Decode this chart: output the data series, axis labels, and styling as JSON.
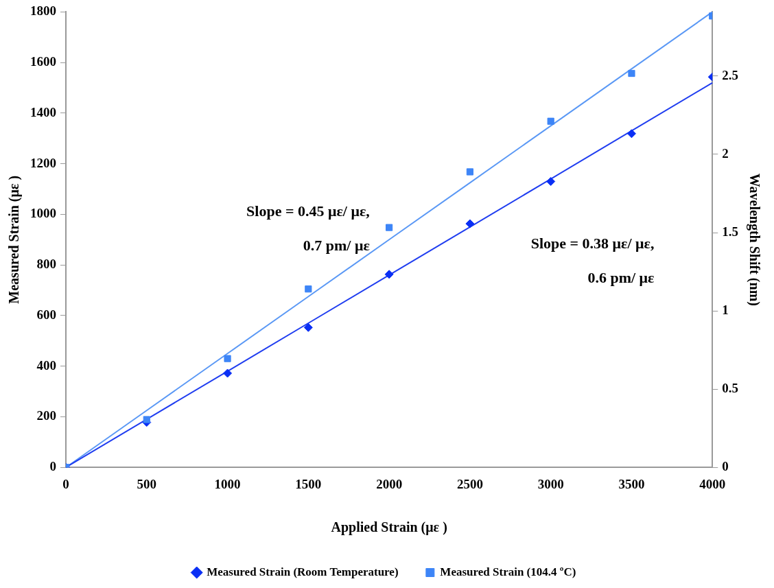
{
  "chart_data": {
    "type": "scatter",
    "xlabel": "Applied Strain (με )",
    "ylabel": "Measured Strain (με )",
    "y2label": "Wavelength Shift (nm)",
    "x": [
      0,
      500,
      1000,
      1500,
      2000,
      2500,
      3000,
      3500,
      4000
    ],
    "series": [
      {
        "name": "Measured Strain (Room Temperature)",
        "color": "#0a2ff5",
        "marker": "diamond",
        "values": [
          0,
          178,
          372,
          553,
          763,
          963,
          1130,
          1319,
          1543
        ]
      },
      {
        "name": "Measured Strain (104.4 ºC)",
        "color": "#3d85f7",
        "marker": "square",
        "values": [
          0,
          189,
          430,
          705,
          948,
          1168,
          1368,
          1557,
          1784
        ]
      },
      {
        "type": "line",
        "color": "#1f3df0",
        "marker": "none",
        "values": [
          0,
          190,
          380,
          570,
          760,
          950,
          1140,
          1330,
          1520
        ]
      },
      {
        "type": "line",
        "color": "#5a98f5",
        "marker": "none",
        "values": [
          0,
          225,
          450,
          675,
          900,
          1125,
          1350,
          1575,
          1800
        ]
      }
    ],
    "xlim": [
      0,
      4000
    ],
    "xticks": [
      0,
      500,
      1000,
      1500,
      2000,
      2500,
      3000,
      3500,
      4000
    ],
    "ylim": [
      0,
      1800
    ],
    "yticks": [
      0,
      200,
      400,
      600,
      800,
      1000,
      1200,
      1400,
      1600,
      1800
    ],
    "y2lim": [
      0,
      2.91
    ],
    "y2ticks": [
      0,
      0.5,
      1,
      1.5,
      2,
      2.5
    ],
    "annotations": [
      "Slope = 0.45 με/ με,\n0.7 pm/ με",
      "Slope = 0.38 με/ με,\n0.6 pm/ με"
    ],
    "grid": false,
    "legend": "bottom"
  }
}
